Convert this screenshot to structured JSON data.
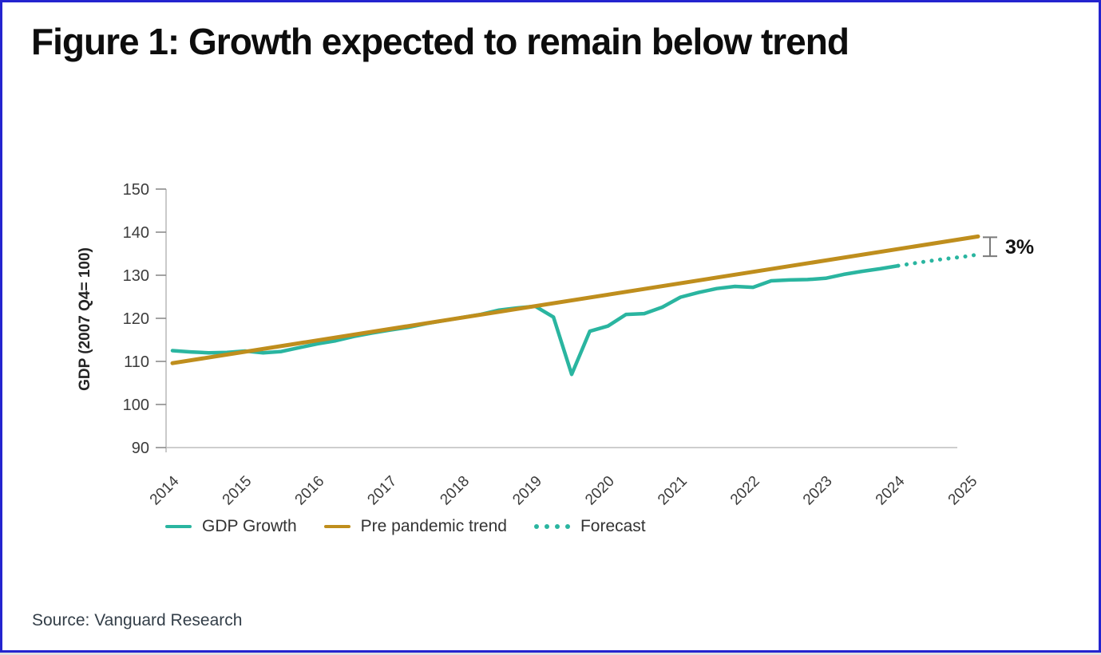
{
  "title": "Figure 1: Growth expected to remain below trend",
  "source": "Source: Vanguard Research",
  "colors": {
    "teal": "#2ab5a0",
    "gold": "#bf8e1d",
    "axis": "#bdbdbd",
    "tick": "#8c8c8c",
    "bracket": "#7a7a7a",
    "border_blue": "#2424cf"
  },
  "legend": {
    "items": [
      {
        "label": "GDP Growth",
        "swatch": "line",
        "color": "#2ab5a0"
      },
      {
        "label": "Pre pandemic trend",
        "swatch": "line",
        "color": "#bf8e1d"
      },
      {
        "label": "Forecast",
        "swatch": "dots",
        "color": "#2ab5a0"
      }
    ]
  },
  "chart_data": {
    "type": "line",
    "title": "Figure 1: Growth expected to remain below trend",
    "xlabel": "",
    "ylabel": "GDP (2007 Q4= 100)",
    "ylim": [
      90,
      150
    ],
    "xlim": [
      2014,
      2025.2
    ],
    "y_ticks": [
      90,
      100,
      110,
      120,
      130,
      140,
      150
    ],
    "x_ticks": [
      2014,
      2015,
      2016,
      2017,
      2018,
      2019,
      2020,
      2021,
      2022,
      2023,
      2024,
      2025
    ],
    "grid": false,
    "legend_position": "bottom",
    "annotation": {
      "label": "3%"
    },
    "series": [
      {
        "name": "GDP Growth",
        "color": "#2ab5a0",
        "style": "solid",
        "points": [
          [
            2014.0,
            112.5
          ],
          [
            2014.25,
            112.2
          ],
          [
            2014.5,
            112.0
          ],
          [
            2014.75,
            112.1
          ],
          [
            2015.0,
            112.4
          ],
          [
            2015.25,
            112.0
          ],
          [
            2015.5,
            112.3
          ],
          [
            2015.75,
            113.2
          ],
          [
            2016.0,
            114.1
          ],
          [
            2016.25,
            114.8
          ],
          [
            2016.5,
            115.8
          ],
          [
            2016.75,
            116.6
          ],
          [
            2017.0,
            117.3
          ],
          [
            2017.25,
            117.9
          ],
          [
            2017.5,
            118.8
          ],
          [
            2017.75,
            119.5
          ],
          [
            2018.0,
            120.2
          ],
          [
            2018.25,
            120.9
          ],
          [
            2018.5,
            121.9
          ],
          [
            2018.75,
            122.4
          ],
          [
            2019.0,
            122.8
          ],
          [
            2019.25,
            120.3
          ],
          [
            2019.5,
            107.0
          ],
          [
            2019.75,
            117.0
          ],
          [
            2020.0,
            118.2
          ],
          [
            2020.25,
            120.9
          ],
          [
            2020.5,
            121.1
          ],
          [
            2020.75,
            122.6
          ],
          [
            2021.0,
            124.9
          ],
          [
            2021.25,
            126.0
          ],
          [
            2021.5,
            126.9
          ],
          [
            2021.75,
            127.4
          ],
          [
            2022.0,
            127.2
          ],
          [
            2022.25,
            128.7
          ],
          [
            2022.5,
            128.9
          ],
          [
            2022.75,
            129.0
          ],
          [
            2023.0,
            129.3
          ],
          [
            2023.25,
            130.2
          ],
          [
            2023.5,
            130.9
          ],
          [
            2023.75,
            131.5
          ],
          [
            2024.0,
            132.2
          ]
        ]
      },
      {
        "name": "Pre pandemic trend",
        "color": "#bf8e1d",
        "style": "solid",
        "points": [
          [
            2014.0,
            109.6
          ],
          [
            2025.1,
            139.0
          ]
        ]
      },
      {
        "name": "Forecast",
        "color": "#2ab5a0",
        "style": "dotted",
        "points": [
          [
            2024.0,
            132.2
          ],
          [
            2024.3,
            133.0
          ],
          [
            2024.6,
            133.7
          ],
          [
            2024.9,
            134.3
          ],
          [
            2025.1,
            134.8
          ]
        ]
      }
    ]
  }
}
